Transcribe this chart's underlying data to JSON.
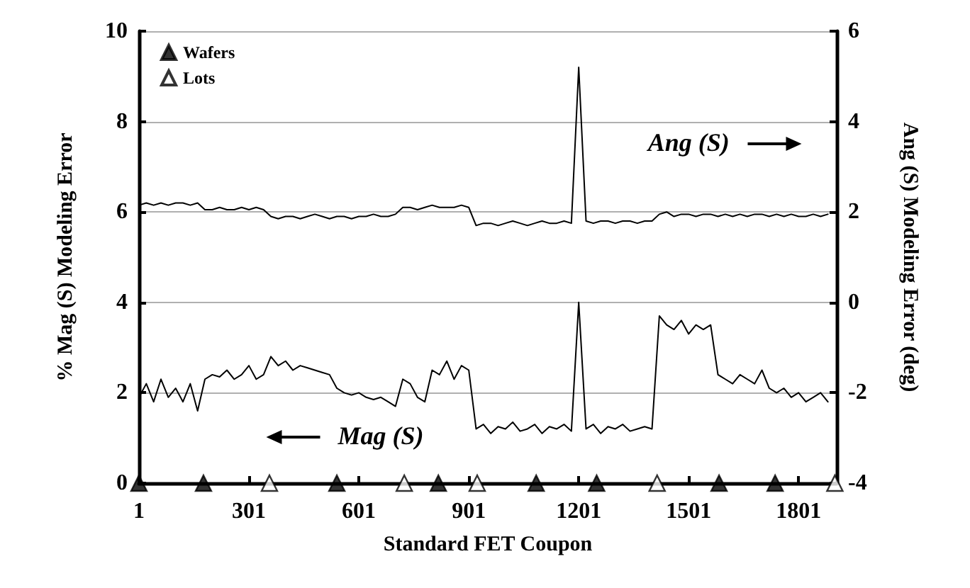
{
  "chart_data": {
    "type": "line",
    "xlabel": "Standard FET Coupon",
    "ylabel": "% Mag (S) Modeling Error",
    "y2label": "Ang (S) Modeling Error (deg)",
    "x": [
      1,
      21,
      41,
      61,
      81,
      101,
      121,
      141,
      161,
      181,
      201,
      221,
      241,
      261,
      281,
      301,
      321,
      341,
      361,
      381,
      401,
      421,
      441,
      461,
      481,
      501,
      521,
      541,
      561,
      581,
      601,
      621,
      641,
      661,
      681,
      701,
      721,
      741,
      761,
      781,
      801,
      821,
      841,
      861,
      881,
      901,
      921,
      941,
      961,
      981,
      1001,
      1021,
      1041,
      1061,
      1081,
      1101,
      1121,
      1141,
      1161,
      1181,
      1201,
      1221,
      1241,
      1261,
      1281,
      1301,
      1321,
      1341,
      1361,
      1381,
      1401,
      1421,
      1441,
      1461,
      1481,
      1501,
      1521,
      1541,
      1561,
      1581,
      1601,
      1621,
      1641,
      1661,
      1681,
      1701,
      1721,
      1741,
      1761,
      1781,
      1801,
      1821,
      1841,
      1861,
      1881
    ],
    "series": [
      {
        "name": "Mag (S)",
        "color": "#000000",
        "values": [
          1.9,
          2.2,
          1.8,
          2.3,
          1.9,
          2.1,
          1.8,
          2.2,
          1.6,
          2.3,
          2.4,
          2.35,
          2.5,
          2.3,
          2.4,
          2.6,
          2.3,
          2.4,
          2.8,
          2.6,
          2.7,
          2.5,
          2.6,
          2.55,
          2.5,
          2.45,
          2.4,
          2.1,
          2.0,
          1.95,
          2.0,
          1.9,
          1.85,
          1.9,
          1.8,
          1.7,
          2.3,
          2.2,
          1.9,
          1.8,
          2.5,
          2.4,
          2.7,
          2.3,
          2.6,
          2.5,
          1.2,
          1.3,
          1.1,
          1.25,
          1.2,
          1.35,
          1.15,
          1.2,
          1.3,
          1.1,
          1.25,
          1.2,
          1.3,
          1.15,
          4.0,
          1.2,
          1.3,
          1.1,
          1.25,
          1.2,
          1.3,
          1.15,
          1.2,
          1.25,
          1.2,
          3.7,
          3.5,
          3.4,
          3.6,
          3.3,
          3.5,
          3.4,
          3.5,
          2.4,
          2.3,
          2.2,
          2.4,
          2.3,
          2.2,
          2.5,
          2.1,
          2.0,
          2.1,
          1.9,
          2.0,
          1.8,
          1.9,
          2.0,
          1.8
        ]
      },
      {
        "name": "Ang (S)",
        "axis": "y2",
        "color": "#000000",
        "values": [
          2.15,
          2.2,
          2.15,
          2.2,
          2.15,
          2.2,
          2.2,
          2.15,
          2.2,
          2.05,
          2.05,
          2.1,
          2.05,
          2.05,
          2.1,
          2.05,
          2.1,
          2.05,
          1.9,
          1.85,
          1.9,
          1.9,
          1.85,
          1.9,
          1.95,
          1.9,
          1.85,
          1.9,
          1.9,
          1.85,
          1.9,
          1.9,
          1.95,
          1.9,
          1.9,
          1.95,
          2.1,
          2.1,
          2.05,
          2.1,
          2.15,
          2.1,
          2.1,
          2.1,
          2.15,
          2.1,
          1.7,
          1.75,
          1.75,
          1.7,
          1.75,
          1.8,
          1.75,
          1.7,
          1.75,
          1.8,
          1.75,
          1.75,
          1.8,
          1.75,
          5.2,
          1.8,
          1.75,
          1.8,
          1.8,
          1.75,
          1.8,
          1.8,
          1.75,
          1.8,
          1.8,
          1.95,
          2.0,
          1.9,
          1.95,
          1.95,
          1.9,
          1.95,
          1.95,
          1.9,
          1.95,
          1.9,
          1.95,
          1.9,
          1.95,
          1.95,
          1.9,
          1.95,
          1.9,
          1.95,
          1.9,
          1.9,
          1.95,
          1.9,
          1.95
        ]
      },
      {
        "type": "scatter",
        "name": "Wafers",
        "color": "#000000",
        "marker": "triangle",
        "x": [
          1,
          177,
          541,
          818,
          1085,
          1250,
          1584,
          1737
        ],
        "values": [
          0,
          0,
          0,
          0,
          0,
          0,
          0,
          0
        ]
      },
      {
        "type": "scatter",
        "name": "Lots",
        "color": "#ffffff",
        "marker": "triangle",
        "x": [
          357,
          725,
          924,
          1415,
          1900
        ],
        "values": [
          0,
          0,
          0,
          0,
          0
        ]
      }
    ],
    "xlim": [
      1,
      1905
    ],
    "xticks": [
      1,
      301,
      601,
      901,
      1201,
      1501,
      1801
    ],
    "ylim": [
      0,
      10
    ],
    "yticks": [
      0,
      2,
      4,
      6,
      8,
      10
    ],
    "y2lim": [
      -4,
      6
    ],
    "y2ticks": [
      -4,
      -2,
      0,
      2,
      4,
      6
    ],
    "grid": "y",
    "legend": "top left",
    "marker": "none",
    "line_style": "solid"
  }
}
